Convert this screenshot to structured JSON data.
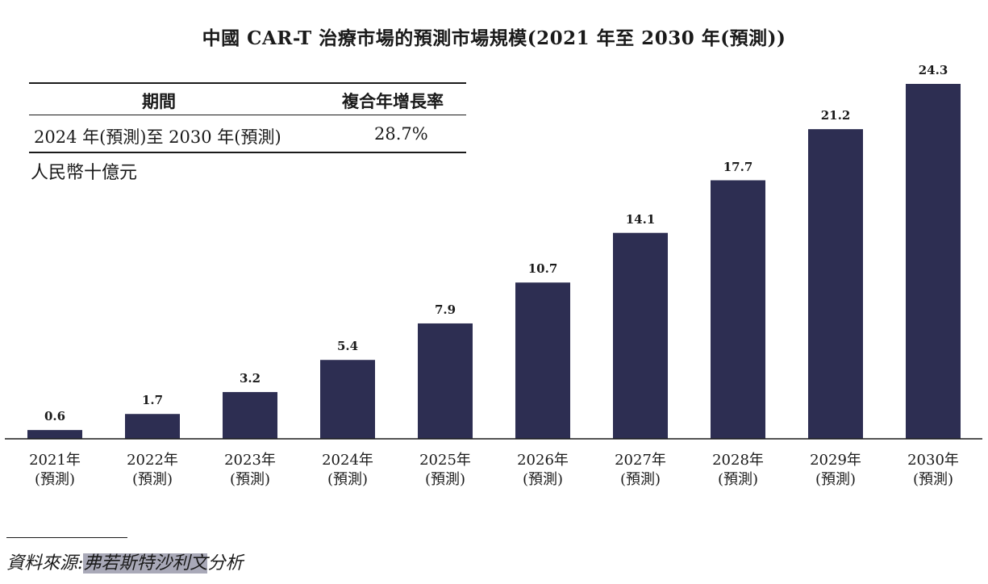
{
  "chart_data": {
    "type": "bar",
    "title": "中國 CAR-T 治療市場的預測市場規模(2021 年至 2030 年(預測))",
    "ylabel": "人民幣十億元",
    "ylim": [
      0,
      24.3
    ],
    "bar_color": "#2d2e52",
    "categories": [
      {
        "year": "2021年",
        "note": "(預測)"
      },
      {
        "year": "2022年",
        "note": "(預測)"
      },
      {
        "year": "2023年",
        "note": "(預測)"
      },
      {
        "year": "2024年",
        "note": "(預測)"
      },
      {
        "year": "2025年",
        "note": "(預測)"
      },
      {
        "year": "2026年",
        "note": "(預測)"
      },
      {
        "year": "2027年",
        "note": "(預測)"
      },
      {
        "year": "2028年",
        "note": "(預測)"
      },
      {
        "year": "2029年",
        "note": "(預測)"
      },
      {
        "year": "2030年",
        "note": "(預測)"
      }
    ],
    "values": [
      0.6,
      1.7,
      3.2,
      5.4,
      7.9,
      10.7,
      14.1,
      17.7,
      21.2,
      24.3
    ],
    "value_labels": [
      "0.6",
      "1.7",
      "3.2",
      "5.4",
      "7.9",
      "10.7",
      "14.1",
      "17.7",
      "21.2",
      "24.3"
    ]
  },
  "cagr_table": {
    "header_period": "期間",
    "header_cagr": "複合年增長率",
    "period": "2024 年(預測)至 2030 年(預測)",
    "cagr": "28.7%"
  },
  "source": {
    "prefix": "資料來源:",
    "highlighted": "弗若斯特沙利文",
    "suffix": "分析"
  }
}
